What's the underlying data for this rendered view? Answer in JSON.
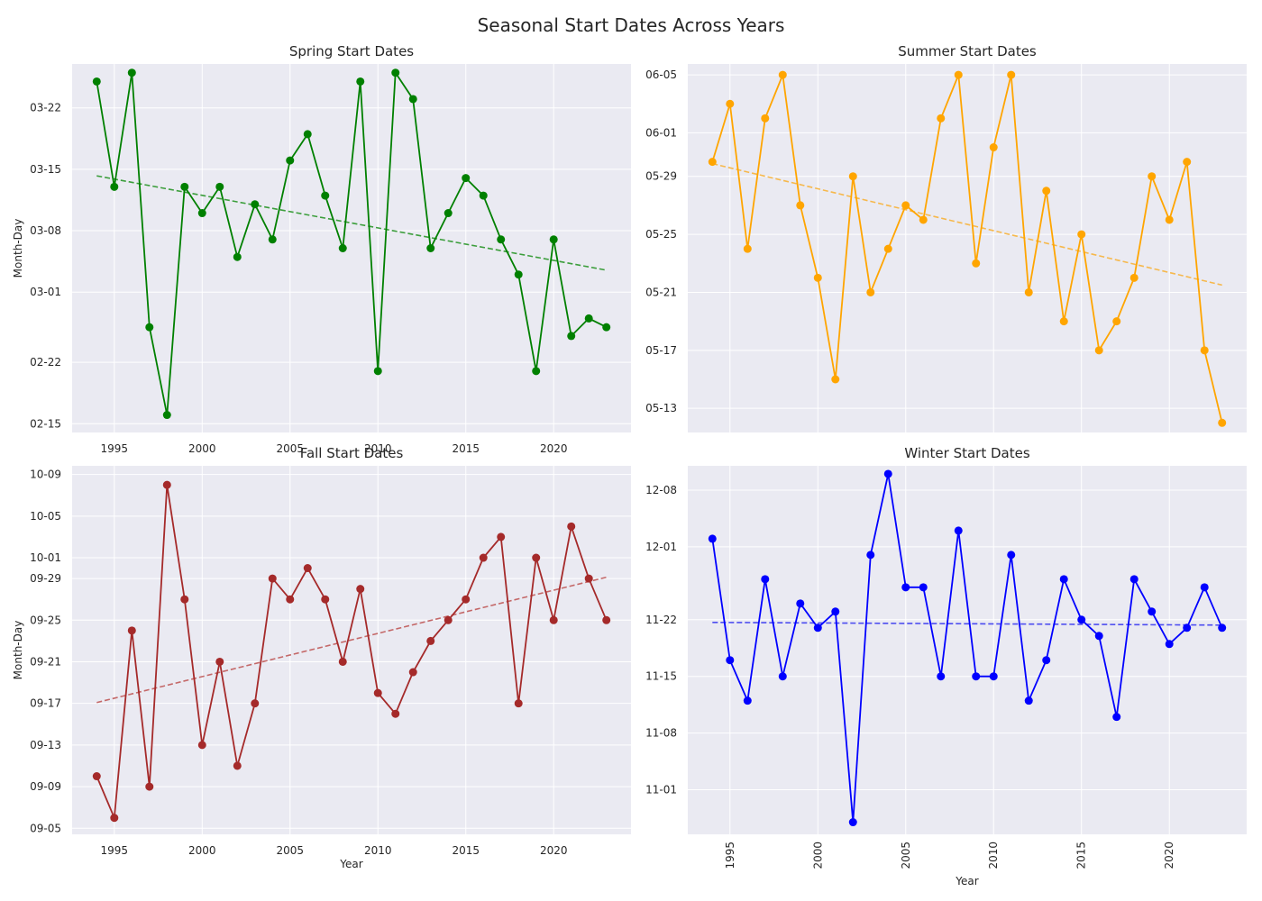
{
  "title": "Seasonal Start Dates Across Years",
  "chart_data": [
    {
      "type": "line",
      "title": "Spring Start Dates",
      "xlabel": "",
      "ylabel": "Month-Day",
      "x_ticks": [
        "1995",
        "2000",
        "2005",
        "2010",
        "2015",
        "2020"
      ],
      "x_tick_rotation": 0,
      "y_ticks": [
        [
          "2024-02-15",
          "02-15"
        ],
        [
          "2024-02-22",
          "02-22"
        ],
        [
          "2024-03-01",
          "03-01"
        ],
        [
          "2024-03-08",
          "03-08"
        ],
        [
          "2024-03-15",
          "03-15"
        ],
        [
          "2024-03-22",
          "03-22"
        ]
      ],
      "ylim": [
        "2024-02-14",
        "2024-03-27"
      ],
      "xlim": [
        1992.6,
        2024.4
      ],
      "color": "#008000",
      "trend_color": "#3c9e3c",
      "x": [
        1994,
        1995,
        1996,
        1997,
        1998,
        1999,
        2000,
        2001,
        2002,
        2003,
        2004,
        2005,
        2006,
        2007,
        2008,
        2009,
        2010,
        2011,
        2012,
        2013,
        2014,
        2015,
        2016,
        2017,
        2018,
        2019,
        2020,
        2021,
        2022,
        2023
      ],
      "y": [
        "2024-03-25",
        "2024-03-13",
        "2024-03-26",
        "2024-02-26",
        "2024-02-16",
        "2024-03-13",
        "2024-03-10",
        "2024-03-13",
        "2024-03-05",
        "2024-03-11",
        "2024-03-07",
        "2024-03-16",
        "2024-03-19",
        "2024-03-12",
        "2024-03-06",
        "2024-03-25",
        "2024-02-21",
        "2024-03-26",
        "2024-03-23",
        "2024-03-06",
        "2024-03-10",
        "2024-03-14",
        "2024-03-12",
        "2024-03-07",
        "2024-03-03",
        "2024-02-21",
        "2024-03-07",
        "2024-02-25",
        "2024-02-27",
        "2024-02-26"
      ],
      "trend": [
        [
          "2024-03-14 06:00",
          "2024-03-03 12:00"
        ]
      ]
    },
    {
      "type": "line",
      "title": "Summer Start Dates",
      "xlabel": "",
      "ylabel": "",
      "x_ticks": [],
      "x_tick_rotation": 0,
      "y_ticks": [
        [
          "2024-05-13",
          "05-13"
        ],
        [
          "2024-05-17",
          "05-17"
        ],
        [
          "2024-05-21",
          "05-21"
        ],
        [
          "2024-05-25",
          "05-25"
        ],
        [
          "2024-05-29",
          "05-29"
        ],
        [
          "2024-06-01",
          "06-01"
        ],
        [
          "2024-06-05",
          "06-05"
        ]
      ],
      "ylim": [
        "2024-05-11 08:00",
        "2024-06-05 18:00"
      ],
      "xlim": [
        1992.6,
        2024.4
      ],
      "color": "#ffa500",
      "trend_color": "#f6b84c",
      "x": [
        1994,
        1995,
        1996,
        1997,
        1998,
        1999,
        2000,
        2001,
        2002,
        2003,
        2004,
        2005,
        2006,
        2007,
        2008,
        2009,
        2010,
        2011,
        2012,
        2013,
        2014,
        2015,
        2016,
        2017,
        2018,
        2019,
        2020,
        2021,
        2022,
        2023
      ],
      "y": [
        "2024-05-30",
        "2024-06-03",
        "2024-05-24",
        "2024-06-02",
        "2024-06-05",
        "2024-05-27",
        "2024-05-22",
        "2024-05-15",
        "2024-05-29",
        "2024-05-21",
        "2024-05-24",
        "2024-05-27",
        "2024-05-26",
        "2024-06-02",
        "2024-06-05",
        "2024-05-23",
        "2024-05-31",
        "2024-06-05",
        "2024-05-21",
        "2024-05-28",
        "2024-05-19",
        "2024-05-25",
        "2024-05-17",
        "2024-05-19",
        "2024-05-22",
        "2024-05-29",
        "2024-05-26",
        "2024-05-30",
        "2024-05-17",
        "2024-05-12"
      ],
      "trend": [
        [
          "2024-05-29 21:00",
          "2024-05-21 12:00"
        ]
      ]
    },
    {
      "type": "line",
      "title": "Fall Start Dates",
      "xlabel": "Year",
      "ylabel": "Month-Day",
      "x_ticks": [
        "1995",
        "2000",
        "2005",
        "2010",
        "2015",
        "2020"
      ],
      "x_tick_rotation": 0,
      "y_ticks": [
        [
          "2024-09-05",
          "09-05"
        ],
        [
          "2024-09-09",
          "09-09"
        ],
        [
          "2024-09-13",
          "09-13"
        ],
        [
          "2024-09-17",
          "09-17"
        ],
        [
          "2024-09-21",
          "09-21"
        ],
        [
          "2024-09-25",
          "09-25"
        ],
        [
          "2024-09-29",
          "09-29"
        ],
        [
          "2024-10-01",
          "10-01"
        ],
        [
          "2024-10-05",
          "10-05"
        ],
        [
          "2024-10-09",
          "10-09"
        ]
      ],
      "ylim": [
        "2024-09-04 10:00",
        "2024-10-09 20:00"
      ],
      "xlim": [
        1992.6,
        2024.4
      ],
      "color": "#a52a2a",
      "trend_color": "#c46868",
      "x": [
        1994,
        1995,
        1996,
        1997,
        1998,
        1999,
        2000,
        2001,
        2002,
        2003,
        2004,
        2005,
        2006,
        2007,
        2008,
        2009,
        2010,
        2011,
        2012,
        2013,
        2014,
        2015,
        2016,
        2017,
        2018,
        2019,
        2020,
        2021,
        2022,
        2023
      ],
      "y": [
        "2024-09-10",
        "2024-09-06",
        "2024-09-24",
        "2024-09-09",
        "2024-10-08",
        "2024-09-27",
        "2024-09-13",
        "2024-09-21",
        "2024-09-11",
        "2024-09-17",
        "2024-09-29",
        "2024-09-27",
        "2024-09-30",
        "2024-09-27",
        "2024-09-21",
        "2024-09-28",
        "2024-09-18",
        "2024-09-16",
        "2024-09-20",
        "2024-09-23",
        "2024-09-25",
        "2024-09-27",
        "2024-10-01",
        "2024-10-03",
        "2024-09-17",
        "2024-10-01",
        "2024-09-25",
        "2024-10-04",
        "2024-09-29",
        "2024-09-25"
      ],
      "trend": [
        [
          "2024-09-17 02:00",
          "2024-09-29 03:00"
        ]
      ]
    },
    {
      "type": "line",
      "title": "Winter Start Dates",
      "xlabel": "Year",
      "ylabel": "",
      "x_ticks": [
        "1995",
        "2000",
        "2005",
        "2010",
        "2015",
        "2020"
      ],
      "x_tick_rotation": -90,
      "y_ticks": [
        [
          "2024-11-01",
          "11-01"
        ],
        [
          "2024-11-08",
          "11-08"
        ],
        [
          "2024-11-15",
          "11-15"
        ],
        [
          "2024-11-22",
          "11-22"
        ],
        [
          "2024-12-01",
          "12-01"
        ],
        [
          "2024-12-08",
          "12-08"
        ]
      ],
      "ylim": [
        "2024-10-26 12:00",
        "2024-12-11"
      ],
      "xlim": [
        1992.6,
        2024.4
      ],
      "color": "#0000ff",
      "trend_color": "#4c4cf0",
      "x": [
        1994,
        1995,
        1996,
        1997,
        1998,
        1999,
        2000,
        2001,
        2002,
        2003,
        2004,
        2005,
        2006,
        2007,
        2008,
        2009,
        2010,
        2011,
        2012,
        2013,
        2014,
        2015,
        2016,
        2017,
        2018,
        2019,
        2020,
        2021,
        2022,
        2023
      ],
      "y": [
        "2024-12-02",
        "2024-11-17",
        "2024-11-12",
        "2024-11-27",
        "2024-11-15",
        "2024-11-24",
        "2024-11-21",
        "2024-11-23",
        "2024-10-28",
        "2024-11-30",
        "2024-12-10",
        "2024-11-26",
        "2024-11-26",
        "2024-11-15",
        "2024-12-03",
        "2024-11-15",
        "2024-11-15",
        "2024-11-30",
        "2024-11-12",
        "2024-11-17",
        "2024-11-27",
        "2024-11-22",
        "2024-11-20",
        "2024-11-10",
        "2024-11-27",
        "2024-11-23",
        "2024-11-19",
        "2024-11-21",
        "2024-11-26",
        "2024-11-21"
      ],
      "trend": [
        [
          "2024-11-21 16:00",
          "2024-11-21 08:00"
        ]
      ]
    }
  ]
}
